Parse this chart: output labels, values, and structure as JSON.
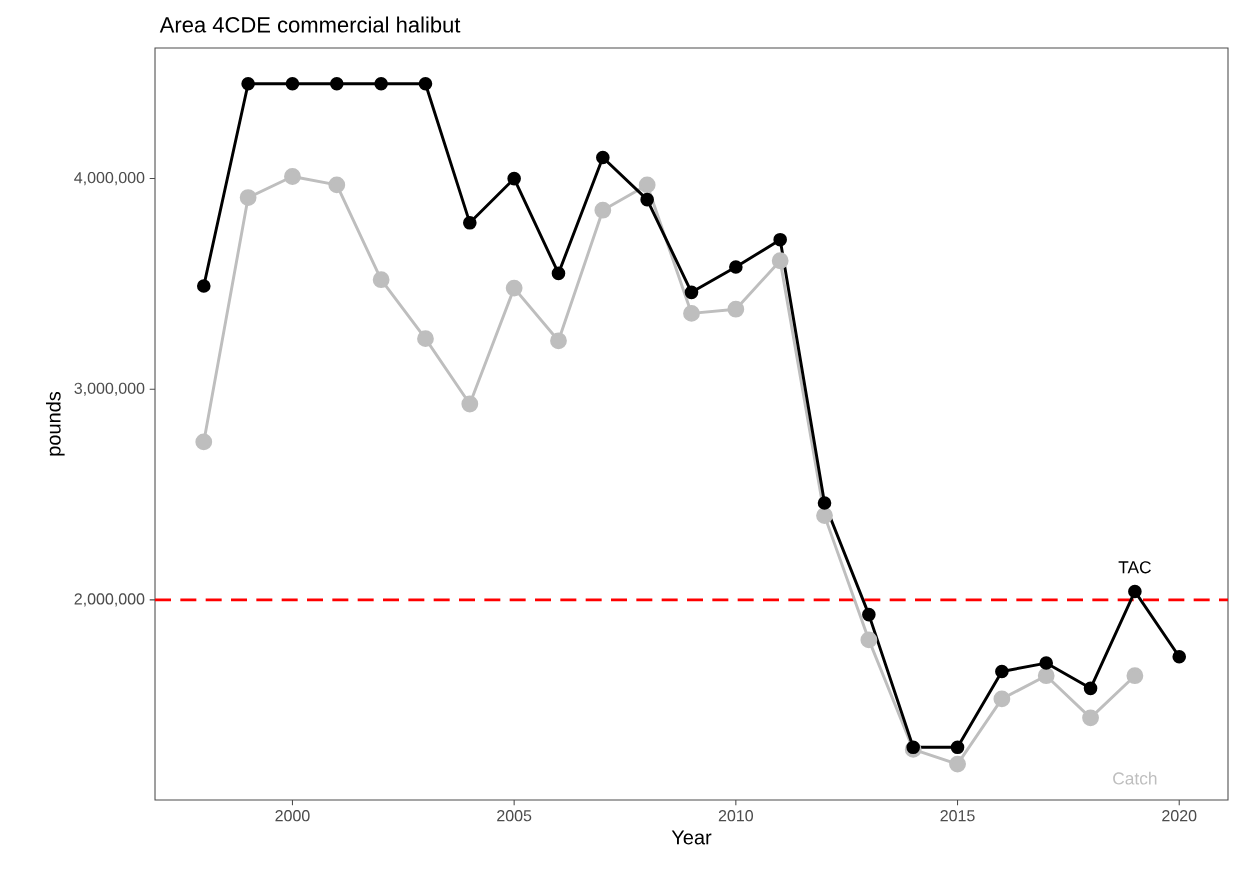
{
  "chart_data": {
    "type": "line",
    "title": "Area 4CDE commercial halibut",
    "xlabel": "Year",
    "ylabel": "pounds",
    "x": [
      1998,
      1999,
      2000,
      2001,
      2002,
      2003,
      2004,
      2005,
      2006,
      2007,
      2008,
      2009,
      2010,
      2011,
      2012,
      2013,
      2014,
      2015,
      2016,
      2017,
      2018,
      2019,
      2020
    ],
    "series": [
      {
        "name": "TAC",
        "color": "#000000",
        "values": [
          3490000,
          4450000,
          4450000,
          4450000,
          4450000,
          4450000,
          3790000,
          4000000,
          3550000,
          4100000,
          3900000,
          3460000,
          3580000,
          3710000,
          2460000,
          1930000,
          1300000,
          1300000,
          1660000,
          1700000,
          1580000,
          2040000,
          1730000
        ]
      },
      {
        "name": "Catch",
        "color": "#bebebe",
        "values": [
          2750000,
          3910000,
          4010000,
          3970000,
          3520000,
          3240000,
          2930000,
          3480000,
          3230000,
          3850000,
          3970000,
          3360000,
          3380000,
          3610000,
          2400000,
          1810000,
          1290000,
          1220000,
          1530000,
          1640000,
          1440000,
          1640000,
          null
        ]
      }
    ],
    "xlim": [
      1996.9,
      2021.1
    ],
    "ylim": [
      1050000,
      4620000
    ],
    "xticks": [
      2000,
      2005,
      2010,
      2015,
      2020
    ],
    "yticks": [
      {
        "value": 2000000,
        "label": "2,000,000"
      },
      {
        "value": 3000000,
        "label": "3,000,000"
      },
      {
        "value": 4000000,
        "label": "4,000,000"
      }
    ],
    "ref_lines": [
      {
        "axis": "y",
        "value": 2000000,
        "color": "#ff0000",
        "line_style": "dashed"
      }
    ],
    "grid": false,
    "marker": "circle",
    "line_style": "solid"
  }
}
